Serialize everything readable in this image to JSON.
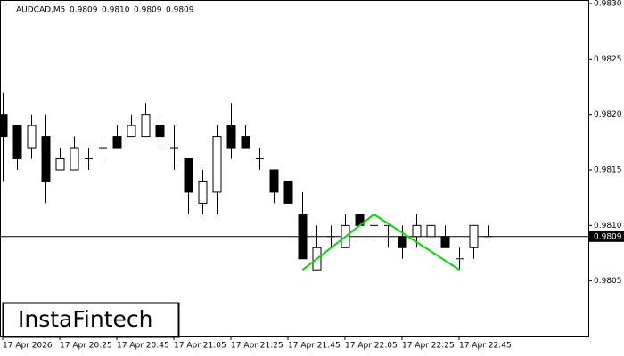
{
  "chart_data": {
    "type": "candlestick",
    "title": "AUDCAD,M5",
    "ohlc_header": [
      {
        "value": 0.9809,
        "label": "0.9809"
      },
      {
        "value": 0.981,
        "label": "0.9810"
      },
      {
        "value": 0.9809,
        "label": "0.9809"
      },
      {
        "value": 0.9809,
        "label": "0.9809"
      }
    ],
    "categories": [
      "17 Apr 2026",
      null,
      null,
      null,
      "17 Apr 20:25",
      null,
      null,
      null,
      "17 Apr 20:45",
      null,
      null,
      null,
      "17 Apr 21:05",
      null,
      null,
      null,
      "17 Apr 21:25",
      null,
      null,
      null,
      "17 Apr 21:45",
      null,
      null,
      null,
      "17 Apr 22:05",
      null,
      null,
      null,
      "17 Apr 22:25",
      null,
      null,
      null,
      "17 Apr 22:45",
      null,
      null
    ],
    "open": [
      0.982,
      0.9819,
      0.9817,
      0.9818,
      0.9815,
      0.9815,
      0.9816,
      0.9817,
      0.9818,
      0.9818,
      0.9818,
      0.9819,
      0.9817,
      0.9816,
      0.9812,
      0.9813,
      0.9819,
      0.9818,
      0.9816,
      0.9815,
      0.9814,
      0.9811,
      0.9806,
      0.9809,
      0.9808,
      0.9811,
      0.981,
      0.981,
      0.9809,
      0.9809,
      0.9809,
      0.9809,
      0.9807,
      0.9808,
      0.9809
    ],
    "high": [
      0.9822,
      0.9819,
      0.982,
      0.982,
      0.9817,
      0.9818,
      0.9817,
      0.9818,
      0.9819,
      0.982,
      0.9821,
      0.982,
      0.9819,
      0.9816,
      0.9815,
      0.9819,
      0.9821,
      0.9819,
      0.9817,
      0.9815,
      0.9814,
      0.9813,
      0.981,
      0.981,
      0.9811,
      0.9811,
      0.9811,
      0.981,
      0.981,
      0.9811,
      0.981,
      0.981,
      0.9808,
      0.981,
      0.981
    ],
    "low": [
      0.9814,
      0.9815,
      0.9816,
      0.9812,
      0.9815,
      0.9815,
      0.9815,
      0.9816,
      0.9817,
      0.9818,
      0.9818,
      0.9817,
      0.9815,
      0.9811,
      0.9811,
      0.9811,
      0.9816,
      0.9817,
      0.9815,
      0.9812,
      0.9812,
      0.9807,
      0.9806,
      0.9808,
      0.9808,
      0.981,
      0.9809,
      0.9808,
      0.9807,
      0.9808,
      0.9808,
      0.9808,
      0.9806,
      0.9807,
      0.9809
    ],
    "close": [
      0.9818,
      0.9816,
      0.9819,
      0.9814,
      0.9816,
      0.9817,
      0.9816,
      0.9817,
      0.9817,
      0.9819,
      0.982,
      0.9818,
      0.9817,
      0.9813,
      0.9814,
      0.9818,
      0.9817,
      0.9817,
      0.9816,
      0.9813,
      0.9812,
      0.9807,
      0.9808,
      0.9809,
      0.981,
      0.981,
      0.981,
      0.981,
      0.9808,
      0.981,
      0.981,
      0.9808,
      0.9807,
      0.981,
      0.9809
    ],
    "up_color": "#ffffff",
    "down_color": "#000000",
    "pattern": {
      "color": "#00dd00",
      "index": [
        21,
        26,
        32
      ],
      "values": [
        0.9806,
        0.9811,
        0.9806
      ]
    },
    "last_price": {
      "value": 0.9809,
      "label": "0.9809"
    },
    "ylim": [
      0.98,
      0.983
    ],
    "yticks": [
      0.9805,
      {
        "value": 0.981,
        "label": "0.9810"
      },
      0.9815,
      {
        "value": 0.982,
        "label": "0.9820"
      },
      0.9825,
      {
        "value": 0.983,
        "label": "0.9830"
      }
    ],
    "watermark": "InstaFintech"
  }
}
